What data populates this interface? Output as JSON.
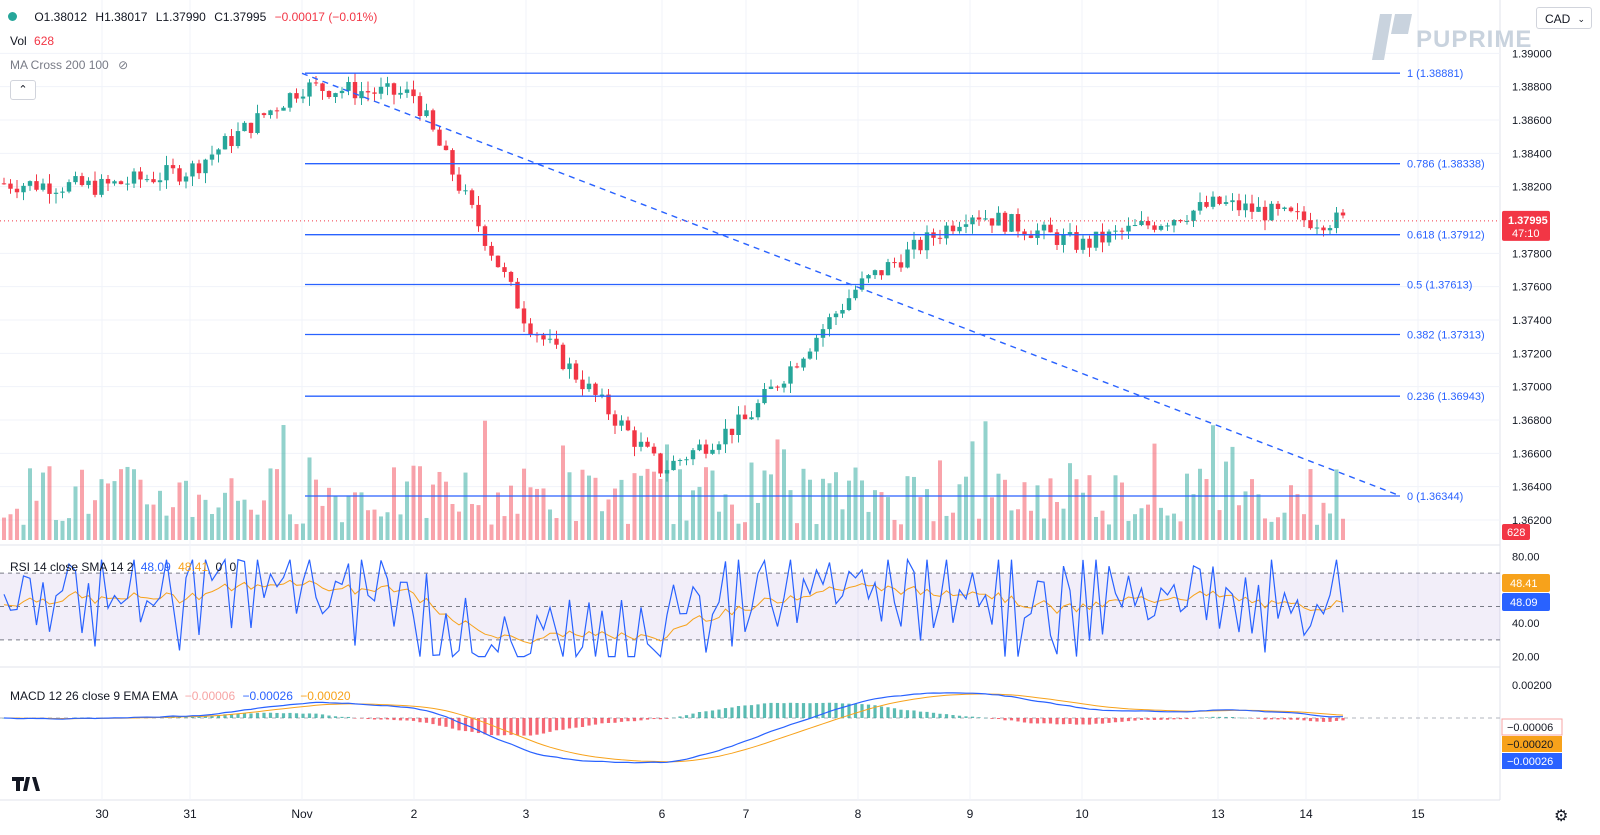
{
  "symbol": {
    "currency": "CAD"
  },
  "ohlc": {
    "o": "O1.38012",
    "h": "H1.38017",
    "l": "L1.37990",
    "c": "C1.37995",
    "chg": "−0.00017 (−0.01%)"
  },
  "vol_label": "Vol",
  "vol_value": "628",
  "ma_label": "MA Cross 200 100",
  "rsi_label": "RSI 14 close SMA 14 2",
  "rsi_v1": "48.09",
  "rsi_v2": "48.41",
  "rsi_v3": "0",
  "rsi_v4": "0",
  "macd_label": "MACD 12 26 close 9 EMA EMA",
  "macd_v1": "−0.00006",
  "macd_v2": "−0.00026",
  "macd_v3": "−0.00020",
  "brand": "PUPRIME",
  "collapse": "⌃",
  "colors": {
    "up": "#26a69a",
    "down": "#f23645",
    "blue": "#2962ff",
    "orange": "#f7a21b",
    "grid": "#f0f3fa"
  },
  "chart_data": {
    "type": "candlestick",
    "x_labels": [
      "30",
      "31",
      "Nov",
      "2",
      "3",
      "6",
      "7",
      "8",
      "9",
      "10",
      "13",
      "14",
      "15"
    ],
    "y_ticks": [
      "1.39000",
      "1.38800",
      "1.38600",
      "1.38400",
      "1.38200",
      "1.37800",
      "1.37600",
      "1.37400",
      "1.37200",
      "1.37000",
      "1.36800",
      "1.36600",
      "1.36400",
      "1.36200"
    ],
    "ylim": [
      1.3608,
      1.3908
    ],
    "last_price": "1.37995",
    "countdown": "47:10",
    "volume_badge": "628",
    "fibonacci": [
      {
        "label": "1 (1.38881)",
        "value": 1.38881
      },
      {
        "label": "0.786 (1.38338)",
        "value": 1.38338
      },
      {
        "label": "0.618 (1.37912)",
        "value": 1.37912
      },
      {
        "label": "0.5 (1.37613)",
        "value": 1.37613
      },
      {
        "label": "0.382 (1.37313)",
        "value": 1.37313
      },
      {
        "label": "0.236 (1.36943)",
        "value": 1.36943
      },
      {
        "label": "0 (1.36344)",
        "value": 1.36344
      }
    ],
    "trendline": {
      "from": [
        "Nov",
        1.3888
      ],
      "to": [
        "15",
        1.3635
      ],
      "style": "dashed"
    },
    "close_path": [
      [
        "30",
        1.382
      ],
      [
        "31",
        1.383
      ],
      [
        "Nov",
        1.388
      ],
      [
        "2",
        1.3875
      ],
      [
        "3",
        1.374
      ],
      [
        "6",
        1.365
      ],
      [
        "7",
        1.368
      ],
      [
        "8",
        1.376
      ],
      [
        "9",
        1.3805
      ],
      [
        "10",
        1.3785
      ],
      [
        "13",
        1.381
      ],
      [
        "14",
        1.38
      ]
    ],
    "rsi": {
      "ticks": [
        "80.00",
        "40.00",
        "20.00"
      ],
      "ylim": [
        15,
        85
      ],
      "bands": [
        30,
        70
      ],
      "value": "48.09",
      "sma": "48.41"
    },
    "macd": {
      "ticks": [
        "0.00200"
      ],
      "badges": [
        "−0.00006",
        "−0.00020",
        "−0.00026"
      ]
    }
  }
}
